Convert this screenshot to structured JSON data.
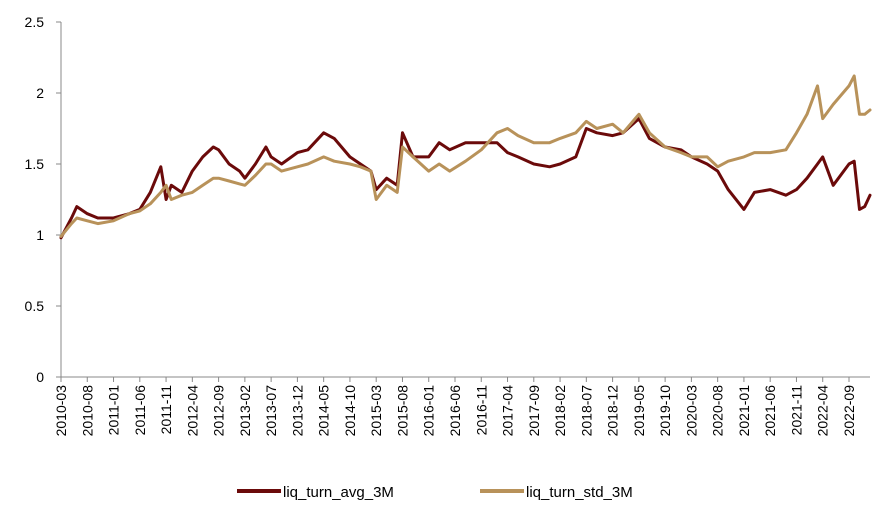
{
  "chart_data": {
    "type": "line",
    "ylim": [
      0,
      2.5
    ],
    "y_ticks": [
      "0",
      "0.5",
      "1",
      "1.5",
      "2",
      "2.5"
    ],
    "x_ticks": [
      "2010-03",
      "2010-08",
      "2011-01",
      "2011-06",
      "2011-11",
      "2012-04",
      "2012-09",
      "2013-02",
      "2013-07",
      "2013-12",
      "2014-05",
      "2014-10",
      "2015-03",
      "2015-08",
      "2016-01",
      "2016-06",
      "2016-11",
      "2017-04",
      "2017-09",
      "2018-02",
      "2018-07",
      "2018-12",
      "2019-05",
      "2019-10",
      "2020-03",
      "2020-08",
      "2021-01",
      "2021-06",
      "2021-11",
      "2022-04",
      "2022-09"
    ],
    "x_end": "2023-01",
    "grid": false,
    "legend_position": "bottom",
    "colors": {
      "liq_turn_avg_3M": "#6b0a0a",
      "liq_turn_std_3M": "#b8925a"
    },
    "series": [
      {
        "name": "liq_turn_avg_3M",
        "x": [
          "2010-03",
          "2010-05",
          "2010-06",
          "2010-08",
          "2010-10",
          "2011-01",
          "2011-04",
          "2011-06",
          "2011-08",
          "2011-10",
          "2011-11",
          "2011-12",
          "2012-02",
          "2012-04",
          "2012-06",
          "2012-08",
          "2012-09",
          "2012-11",
          "2013-01",
          "2013-02",
          "2013-04",
          "2013-06",
          "2013-07",
          "2013-09",
          "2013-12",
          "2014-02",
          "2014-05",
          "2014-07",
          "2014-10",
          "2014-12",
          "2015-02",
          "2015-03",
          "2015-05",
          "2015-07",
          "2015-08",
          "2015-10",
          "2016-01",
          "2016-03",
          "2016-05",
          "2016-08",
          "2016-11",
          "2017-02",
          "2017-04",
          "2017-06",
          "2017-09",
          "2017-12",
          "2018-02",
          "2018-05",
          "2018-07",
          "2018-09",
          "2018-12",
          "2019-02",
          "2019-05",
          "2019-07",
          "2019-10",
          "2020-01",
          "2020-03",
          "2020-06",
          "2020-08",
          "2020-10",
          "2021-01",
          "2021-03",
          "2021-06",
          "2021-09",
          "2021-11",
          "2022-01",
          "2022-03",
          "2022-04",
          "2022-06",
          "2022-09",
          "2022-10",
          "2022-11",
          "2022-12",
          "2023-01"
        ],
        "values": [
          0.98,
          1.12,
          1.2,
          1.15,
          1.12,
          1.12,
          1.15,
          1.18,
          1.3,
          1.48,
          1.25,
          1.35,
          1.3,
          1.45,
          1.55,
          1.62,
          1.6,
          1.5,
          1.45,
          1.4,
          1.5,
          1.62,
          1.55,
          1.5,
          1.58,
          1.6,
          1.72,
          1.68,
          1.55,
          1.5,
          1.45,
          1.32,
          1.4,
          1.35,
          1.72,
          1.55,
          1.55,
          1.65,
          1.6,
          1.65,
          1.65,
          1.65,
          1.58,
          1.55,
          1.5,
          1.48,
          1.5,
          1.55,
          1.75,
          1.72,
          1.7,
          1.72,
          1.82,
          1.68,
          1.62,
          1.6,
          1.55,
          1.5,
          1.45,
          1.32,
          1.18,
          1.3,
          1.32,
          1.28,
          1.32,
          1.4,
          1.5,
          1.55,
          1.35,
          1.5,
          1.52,
          1.18,
          1.2,
          1.28
        ]
      },
      {
        "name": "liq_turn_std_3M",
        "x": [
          "2010-03",
          "2010-05",
          "2010-06",
          "2010-08",
          "2010-10",
          "2011-01",
          "2011-04",
          "2011-06",
          "2011-08",
          "2011-10",
          "2011-11",
          "2011-12",
          "2012-02",
          "2012-04",
          "2012-06",
          "2012-08",
          "2012-09",
          "2012-11",
          "2013-01",
          "2013-02",
          "2013-04",
          "2013-06",
          "2013-07",
          "2013-09",
          "2013-12",
          "2014-02",
          "2014-05",
          "2014-07",
          "2014-10",
          "2014-12",
          "2015-02",
          "2015-03",
          "2015-05",
          "2015-07",
          "2015-08",
          "2015-10",
          "2016-01",
          "2016-03",
          "2016-05",
          "2016-08",
          "2016-11",
          "2017-02",
          "2017-04",
          "2017-06",
          "2017-09",
          "2017-12",
          "2018-02",
          "2018-05",
          "2018-07",
          "2018-09",
          "2018-12",
          "2019-02",
          "2019-05",
          "2019-07",
          "2019-10",
          "2020-01",
          "2020-03",
          "2020-06",
          "2020-08",
          "2020-10",
          "2021-01",
          "2021-03",
          "2021-06",
          "2021-09",
          "2021-11",
          "2022-01",
          "2022-03",
          "2022-04",
          "2022-06",
          "2022-09",
          "2022-10",
          "2022-11",
          "2022-12",
          "2023-01"
        ],
        "values": [
          0.99,
          1.08,
          1.12,
          1.1,
          1.08,
          1.1,
          1.15,
          1.17,
          1.22,
          1.3,
          1.35,
          1.25,
          1.28,
          1.3,
          1.35,
          1.4,
          1.4,
          1.38,
          1.36,
          1.35,
          1.42,
          1.5,
          1.5,
          1.45,
          1.48,
          1.5,
          1.55,
          1.52,
          1.5,
          1.48,
          1.45,
          1.25,
          1.35,
          1.3,
          1.62,
          1.55,
          1.45,
          1.5,
          1.45,
          1.52,
          1.6,
          1.72,
          1.75,
          1.7,
          1.65,
          1.65,
          1.68,
          1.72,
          1.8,
          1.75,
          1.78,
          1.72,
          1.85,
          1.72,
          1.62,
          1.58,
          1.55,
          1.55,
          1.48,
          1.52,
          1.55,
          1.58,
          1.58,
          1.6,
          1.72,
          1.85,
          2.05,
          1.82,
          1.92,
          2.05,
          2.12,
          1.85,
          1.85,
          1.88
        ]
      }
    ]
  }
}
